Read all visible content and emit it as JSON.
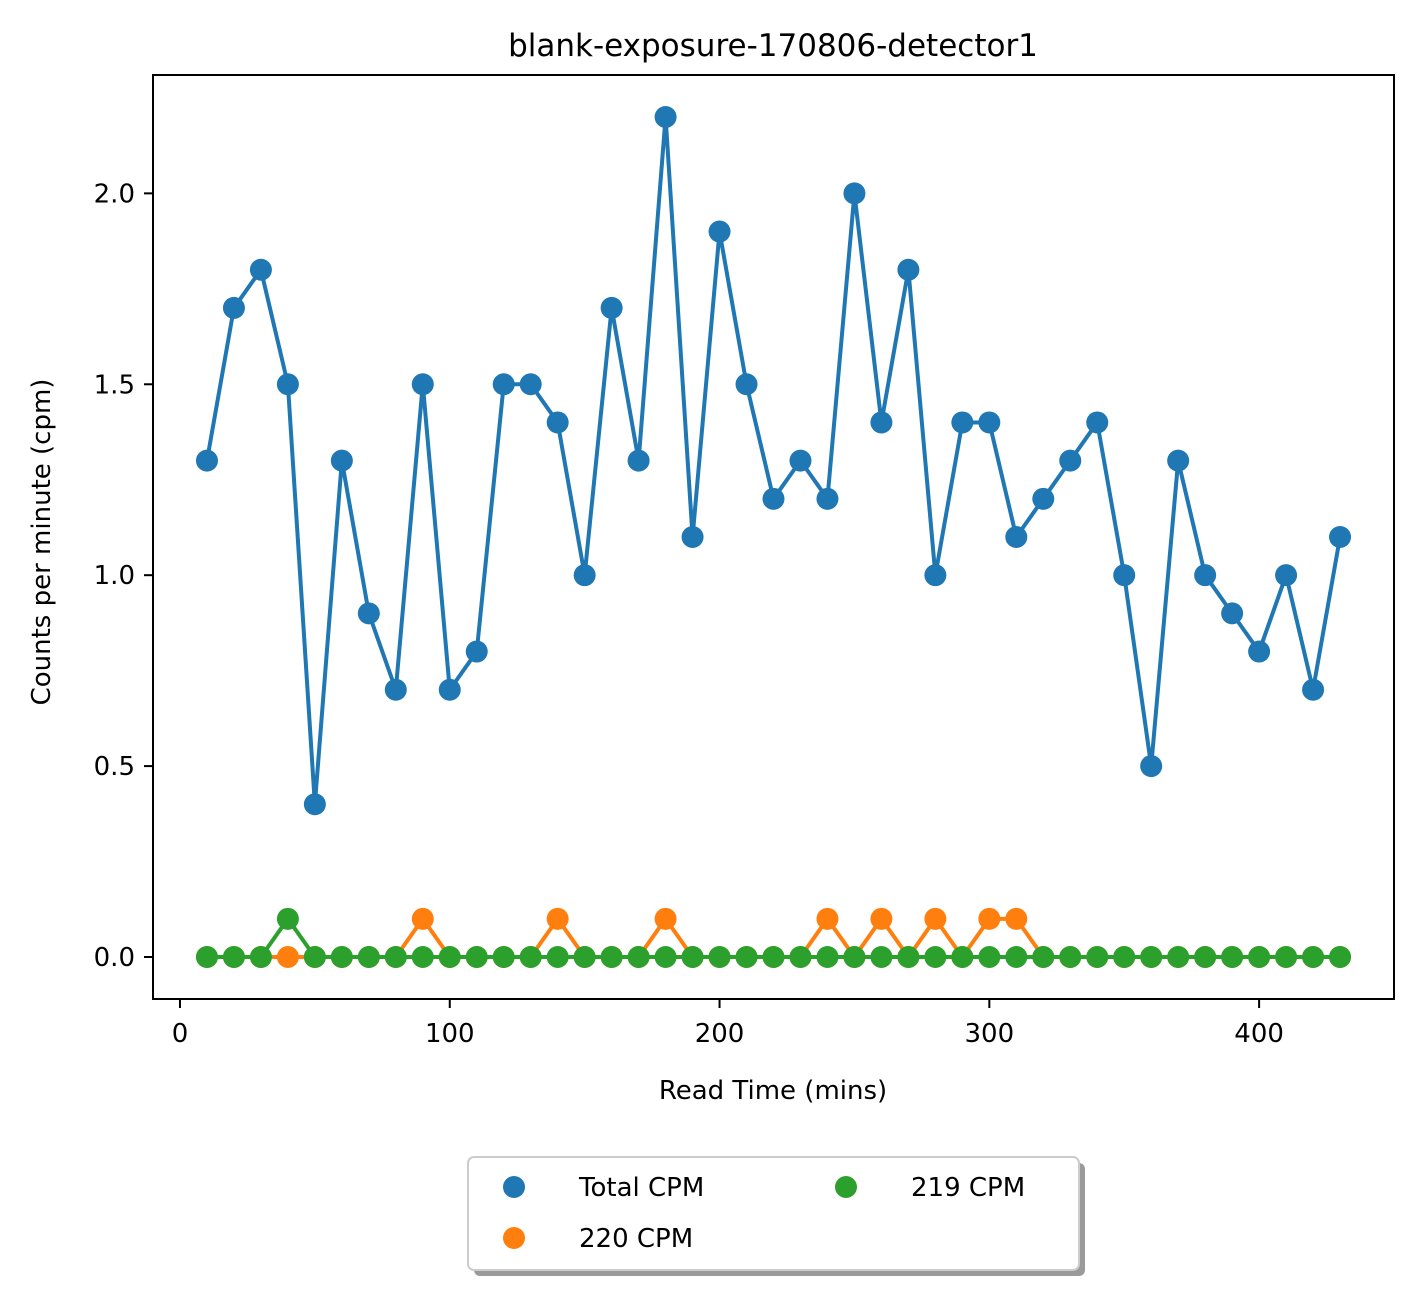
{
  "chart_data": {
    "type": "line",
    "title": "blank-exposure-170806-detector1",
    "xlabel": "Read Time (mins)",
    "ylabel": "Counts per minute (cpm)",
    "xlim": [
      -10,
      450
    ],
    "ylim": [
      -0.11,
      2.31
    ],
    "xticks": [
      0,
      100,
      200,
      300,
      400
    ],
    "yticks": [
      0.0,
      0.5,
      1.0,
      1.5,
      2.0
    ],
    "xtick_labels": [
      "0",
      "100",
      "200",
      "300",
      "400"
    ],
    "ytick_labels": [
      "0.0",
      "0.5",
      "1.0",
      "1.5",
      "2.0"
    ],
    "grid": false,
    "legend_position": "bottom-center (below plot, 2 columns)",
    "x": [
      10,
      20,
      30,
      40,
      50,
      60,
      70,
      80,
      90,
      100,
      110,
      120,
      130,
      140,
      150,
      160,
      170,
      180,
      190,
      200,
      210,
      220,
      230,
      240,
      250,
      260,
      270,
      280,
      290,
      300,
      310,
      320,
      330,
      340,
      350,
      360,
      370,
      380,
      390,
      400,
      410,
      420,
      430
    ],
    "series": [
      {
        "name": "Total CPM",
        "color": "#1f77b4",
        "values": [
          1.3,
          1.7,
          1.8,
          1.5,
          0.4,
          1.3,
          0.9,
          0.7,
          1.5,
          0.7,
          0.8,
          1.5,
          1.5,
          1.4,
          1.0,
          1.7,
          1.3,
          2.2,
          1.1,
          1.9,
          1.5,
          1.2,
          1.3,
          1.2,
          2.0,
          1.4,
          1.8,
          1.0,
          1.4,
          1.4,
          1.1,
          1.2,
          1.3,
          1.4,
          1.0,
          0.5,
          1.3,
          1.0,
          0.9,
          0.8,
          1.0,
          0.7,
          1.1
        ]
      },
      {
        "name": "220 CPM",
        "color": "#ff7f0e",
        "values": [
          0,
          0,
          0,
          0,
          0,
          0,
          0,
          0,
          0.1,
          0,
          0,
          0,
          0,
          0.1,
          0,
          0,
          0,
          0.1,
          0,
          0,
          0,
          0,
          0,
          0.1,
          0,
          0.1,
          0,
          0.1,
          0,
          0.1,
          0.1,
          0,
          0,
          0,
          0,
          0,
          0,
          0,
          0,
          0,
          0,
          0,
          0
        ]
      },
      {
        "name": "219 CPM",
        "color": "#2ca02c",
        "values": [
          0,
          0,
          0,
          0.1,
          0,
          0,
          0,
          0,
          0,
          0,
          0,
          0,
          0,
          0,
          0,
          0,
          0,
          0,
          0,
          0,
          0,
          0,
          0,
          0,
          0,
          0,
          0,
          0,
          0,
          0,
          0,
          0,
          0,
          0,
          0,
          0,
          0,
          0,
          0,
          0,
          0,
          0,
          0
        ]
      }
    ]
  }
}
